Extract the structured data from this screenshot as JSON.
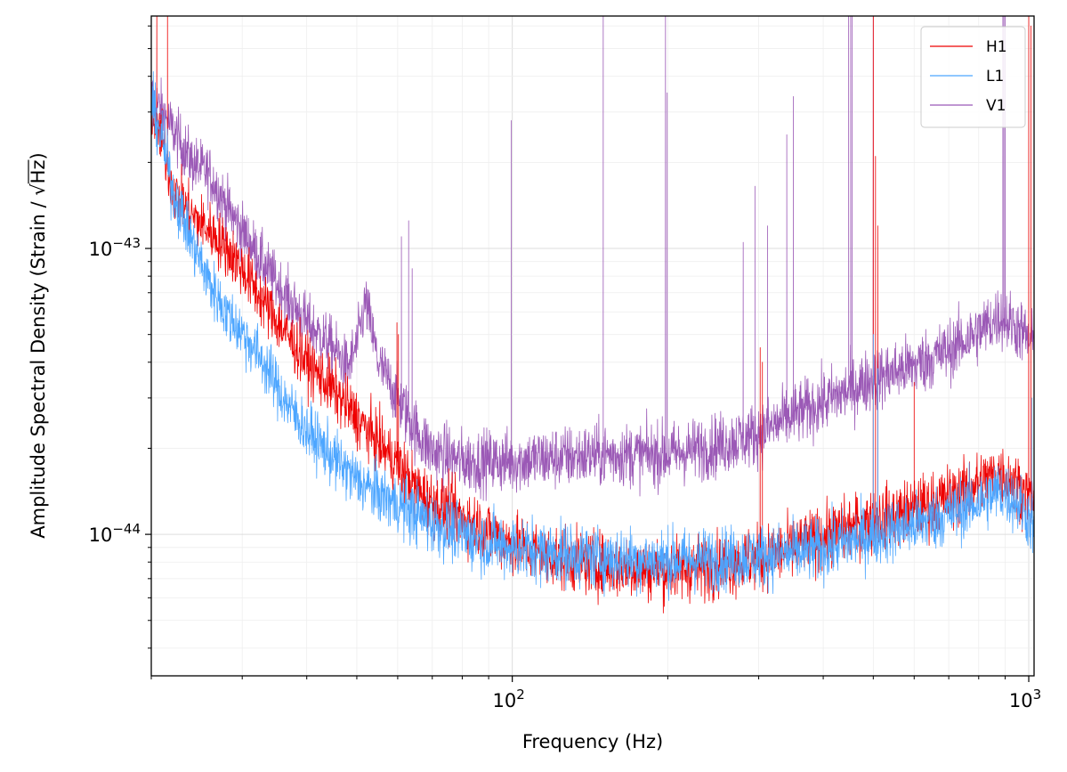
{
  "chart_data": {
    "type": "line",
    "title": "",
    "xlabel": "Frequency (Hz)",
    "ylabel_main": "Amplitude Spectral Density (Strain / ",
    "ylabel_sqrt": "√",
    "ylabel_sqrt_arg": "Hz",
    "ylabel_close": ")",
    "xscale": "log",
    "yscale": "log",
    "xlim": [
      20,
      1024
    ],
    "ylim": [
      3.2e-45,
      6.5e-43
    ],
    "grid": true,
    "legend_position": "top-right",
    "x_ticks": [
      {
        "value": 100,
        "base": "10",
        "exp": "2"
      },
      {
        "value": 1000,
        "base": "10",
        "exp": "3"
      }
    ],
    "y_ticks": [
      {
        "value": 1e-44,
        "base": "10",
        "exp": "−44"
      },
      {
        "value": 1e-43,
        "base": "10",
        "exp": "−43"
      }
    ],
    "series": [
      {
        "name": "H1",
        "color": "#ee0000",
        "points": [
          [
            20,
            3e-43
          ],
          [
            21,
            2.4e-43
          ],
          [
            22,
            1.6e-43
          ],
          [
            24,
            1.3e-43
          ],
          [
            26,
            1.15e-43
          ],
          [
            28,
            1e-43
          ],
          [
            30,
            8.5e-44
          ],
          [
            33,
            6.5e-44
          ],
          [
            36,
            5.2e-44
          ],
          [
            40,
            4e-44
          ],
          [
            45,
            3.2e-44
          ],
          [
            50,
            2.55e-44
          ],
          [
            55,
            2.1e-44
          ],
          [
            60,
            1.75e-44
          ],
          [
            65,
            1.45e-44
          ],
          [
            70,
            1.28e-44
          ],
          [
            80,
            1.15e-44
          ],
          [
            90,
            1.02e-44
          ],
          [
            100,
            9.2e-45
          ],
          [
            120,
            8.3e-45
          ],
          [
            150,
            7.8e-45
          ],
          [
            200,
            7.5e-45
          ],
          [
            250,
            7.8e-45
          ],
          [
            300,
            8.2e-45
          ],
          [
            350,
            8.9e-45
          ],
          [
            400,
            9.8e-45
          ],
          [
            450,
            1.05e-44
          ],
          [
            500,
            1.12e-44
          ],
          [
            600,
            1.22e-44
          ],
          [
            700,
            1.35e-44
          ],
          [
            800,
            1.5e-44
          ],
          [
            880,
            1.65e-44
          ],
          [
            950,
            1.5e-44
          ],
          [
            1000,
            1.35e-44
          ],
          [
            1024,
            1.3e-44
          ]
        ]
      },
      {
        "name": "L1",
        "color": "#4da6ff",
        "points": [
          [
            20,
            3.2e-43
          ],
          [
            21,
            2.4e-43
          ],
          [
            22,
            1.6e-43
          ],
          [
            24,
            1.05e-43
          ],
          [
            26,
            7.5e-44
          ],
          [
            28,
            5.9e-44
          ],
          [
            30,
            5.1e-44
          ],
          [
            33,
            4e-44
          ],
          [
            36,
            3e-44
          ],
          [
            40,
            2.3e-44
          ],
          [
            45,
            1.85e-44
          ],
          [
            50,
            1.55e-44
          ],
          [
            55,
            1.38e-44
          ],
          [
            60,
            1.28e-44
          ],
          [
            65,
            1.18e-44
          ],
          [
            70,
            1.1e-44
          ],
          [
            80,
            1e-44
          ],
          [
            90,
            9.4e-45
          ],
          [
            100,
            9e-45
          ],
          [
            120,
            8.6e-45
          ],
          [
            150,
            8.3e-45
          ],
          [
            200,
            8.1e-45
          ],
          [
            250,
            8.2e-45
          ],
          [
            300,
            8.4e-45
          ],
          [
            350,
            8.6e-45
          ],
          [
            400,
            8.9e-45
          ],
          [
            450,
            9.5e-45
          ],
          [
            500,
            1e-44
          ],
          [
            600,
            1.08e-44
          ],
          [
            700,
            1.18e-44
          ],
          [
            800,
            1.3e-44
          ],
          [
            880,
            1.42e-44
          ],
          [
            950,
            1.3e-44
          ],
          [
            1000,
            1.15e-44
          ],
          [
            1024,
            1.05e-44
          ]
        ]
      },
      {
        "name": "V1",
        "color": "#9b59b6",
        "points": [
          [
            20,
            3.4e-43
          ],
          [
            21,
            3e-43
          ],
          [
            22,
            2.6e-43
          ],
          [
            24,
            2e-43
          ],
          [
            26,
            1.8e-43
          ],
          [
            28,
            1.4e-43
          ],
          [
            30,
            1.15e-43
          ],
          [
            33,
            8.8e-44
          ],
          [
            36,
            7e-44
          ],
          [
            40,
            5.5e-44
          ],
          [
            45,
            4.5e-44
          ],
          [
            48,
            3.8e-44
          ],
          [
            50,
            4.6e-44
          ],
          [
            52,
            6.5e-44
          ],
          [
            55,
            4e-44
          ],
          [
            60,
            3e-44
          ],
          [
            65,
            2.3e-44
          ],
          [
            70,
            1.95e-44
          ],
          [
            80,
            1.8e-44
          ],
          [
            90,
            1.8e-44
          ],
          [
            100,
            1.8e-44
          ],
          [
            120,
            1.85e-44
          ],
          [
            150,
            1.9e-44
          ],
          [
            200,
            1.9e-44
          ],
          [
            250,
            2.05e-44
          ],
          [
            300,
            2.25e-44
          ],
          [
            350,
            2.6e-44
          ],
          [
            400,
            2.9e-44
          ],
          [
            450,
            3.2e-44
          ],
          [
            500,
            3.5e-44
          ],
          [
            600,
            3.9e-44
          ],
          [
            700,
            4.4e-44
          ],
          [
            800,
            5.1e-44
          ],
          [
            880,
            5.8e-44
          ],
          [
            950,
            5.3e-44
          ],
          [
            1000,
            4.8e-44
          ],
          [
            1024,
            4.6e-44
          ]
        ]
      }
    ],
    "spikes": [
      {
        "series": "H1",
        "x": 20.5,
        "y": 7e-43
      },
      {
        "series": "H1",
        "x": 21.5,
        "y": 7e-43
      },
      {
        "series": "H1",
        "x": 59.8,
        "y": 5.5e-44
      },
      {
        "series": "H1",
        "x": 60.2,
        "y": 5e-44
      },
      {
        "series": "H1",
        "x": 302,
        "y": 4.5e-44
      },
      {
        "series": "H1",
        "x": 305,
        "y": 4e-44
      },
      {
        "series": "H1",
        "x": 500,
        "y": 7e-43
      },
      {
        "series": "H1",
        "x": 505,
        "y": 2.1e-43
      },
      {
        "series": "H1",
        "x": 510,
        "y": 1.2e-43
      },
      {
        "series": "H1",
        "x": 600,
        "y": 3.4e-44
      },
      {
        "series": "H1",
        "x": 1000,
        "y": 7e-43
      },
      {
        "series": "H1",
        "x": 1010,
        "y": 6e-43
      },
      {
        "series": "L1",
        "x": 500,
        "y": 5e-44
      },
      {
        "series": "L1",
        "x": 510,
        "y": 3.8e-44
      },
      {
        "series": "L1",
        "x": 1015,
        "y": 3e-44
      },
      {
        "series": "V1",
        "x": 61,
        "y": 1.1e-43
      },
      {
        "series": "V1",
        "x": 63,
        "y": 1.25e-43
      },
      {
        "series": "V1",
        "x": 64,
        "y": 8.5e-44
      },
      {
        "series": "V1",
        "x": 99.5,
        "y": 2.8e-43
      },
      {
        "series": "V1",
        "x": 150,
        "y": 6.5e-43
      },
      {
        "series": "V1",
        "x": 198,
        "y": 6.5e-43
      },
      {
        "series": "V1",
        "x": 199.5,
        "y": 3.5e-43
      },
      {
        "series": "V1",
        "x": 280,
        "y": 1.05e-43
      },
      {
        "series": "V1",
        "x": 295,
        "y": 1.65e-43
      },
      {
        "series": "V1",
        "x": 312,
        "y": 1.2e-43
      },
      {
        "series": "V1",
        "x": 340,
        "y": 2.5e-43
      },
      {
        "series": "V1",
        "x": 350,
        "y": 3.4e-43
      },
      {
        "series": "V1",
        "x": 448,
        "y": 6.5e-43
      },
      {
        "series": "V1",
        "x": 452,
        "y": 6.5e-43
      },
      {
        "series": "V1",
        "x": 455,
        "y": 6.5e-43
      },
      {
        "series": "V1",
        "x": 500,
        "y": 6.5e-43
      },
      {
        "series": "V1",
        "x": 891,
        "y": 6.5e-43
      },
      {
        "series": "V1",
        "x": 895,
        "y": 6.5e-43
      },
      {
        "series": "V1",
        "x": 900,
        "y": 6.5e-43
      }
    ]
  }
}
